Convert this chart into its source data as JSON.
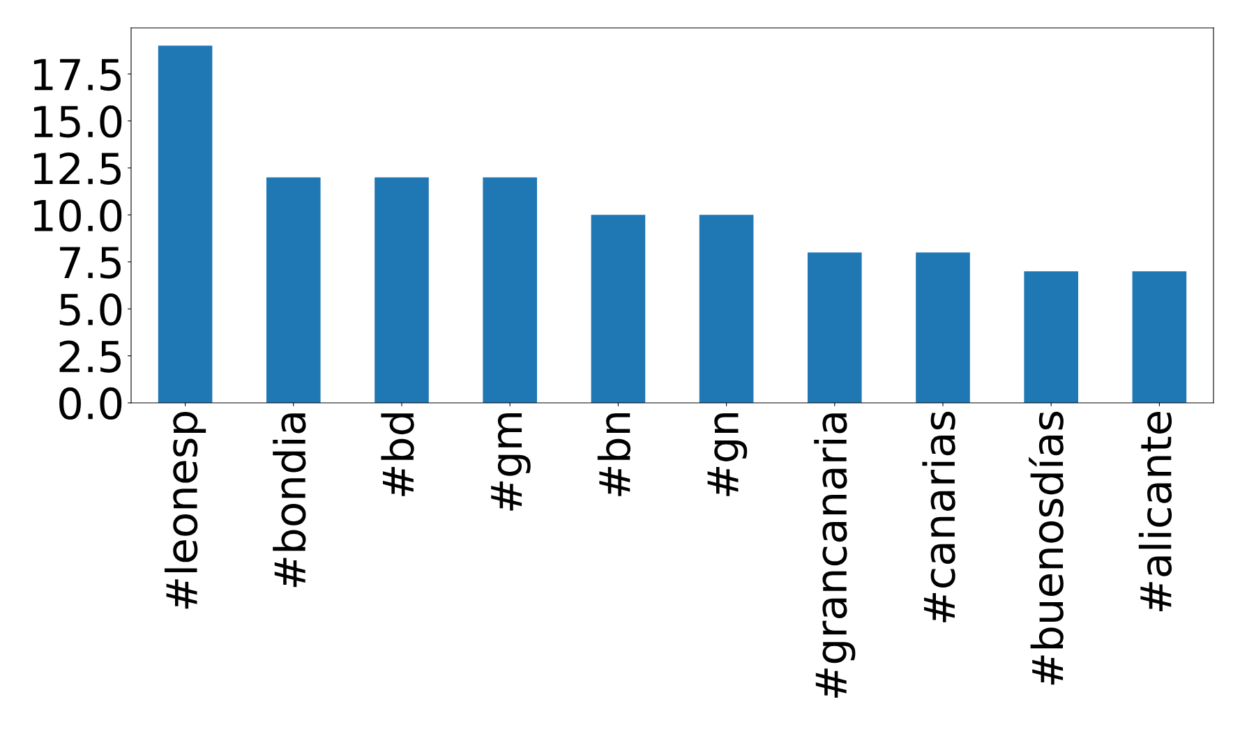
{
  "chart_data": {
    "type": "bar",
    "categories": [
      "#leonesp",
      "#bondia",
      "#bd",
      "#gm",
      "#bn",
      "#gn",
      "#grancanaria",
      "#canarias",
      "#buenosdías",
      "#alicante"
    ],
    "values": [
      19,
      12,
      12,
      12,
      10,
      10,
      8,
      8,
      7,
      7
    ],
    "color": "#1f77b4",
    "ylim": [
      0,
      19.95
    ],
    "yticks": [
      {
        "value": 0,
        "label": "0.0"
      },
      2.5,
      {
        "value": 5,
        "label": "5.0"
      },
      7.5,
      {
        "value": 10,
        "label": "10.0"
      },
      12.5,
      {
        "value": 15,
        "label": "15.0"
      },
      17.5
    ],
    "grid": false
  }
}
